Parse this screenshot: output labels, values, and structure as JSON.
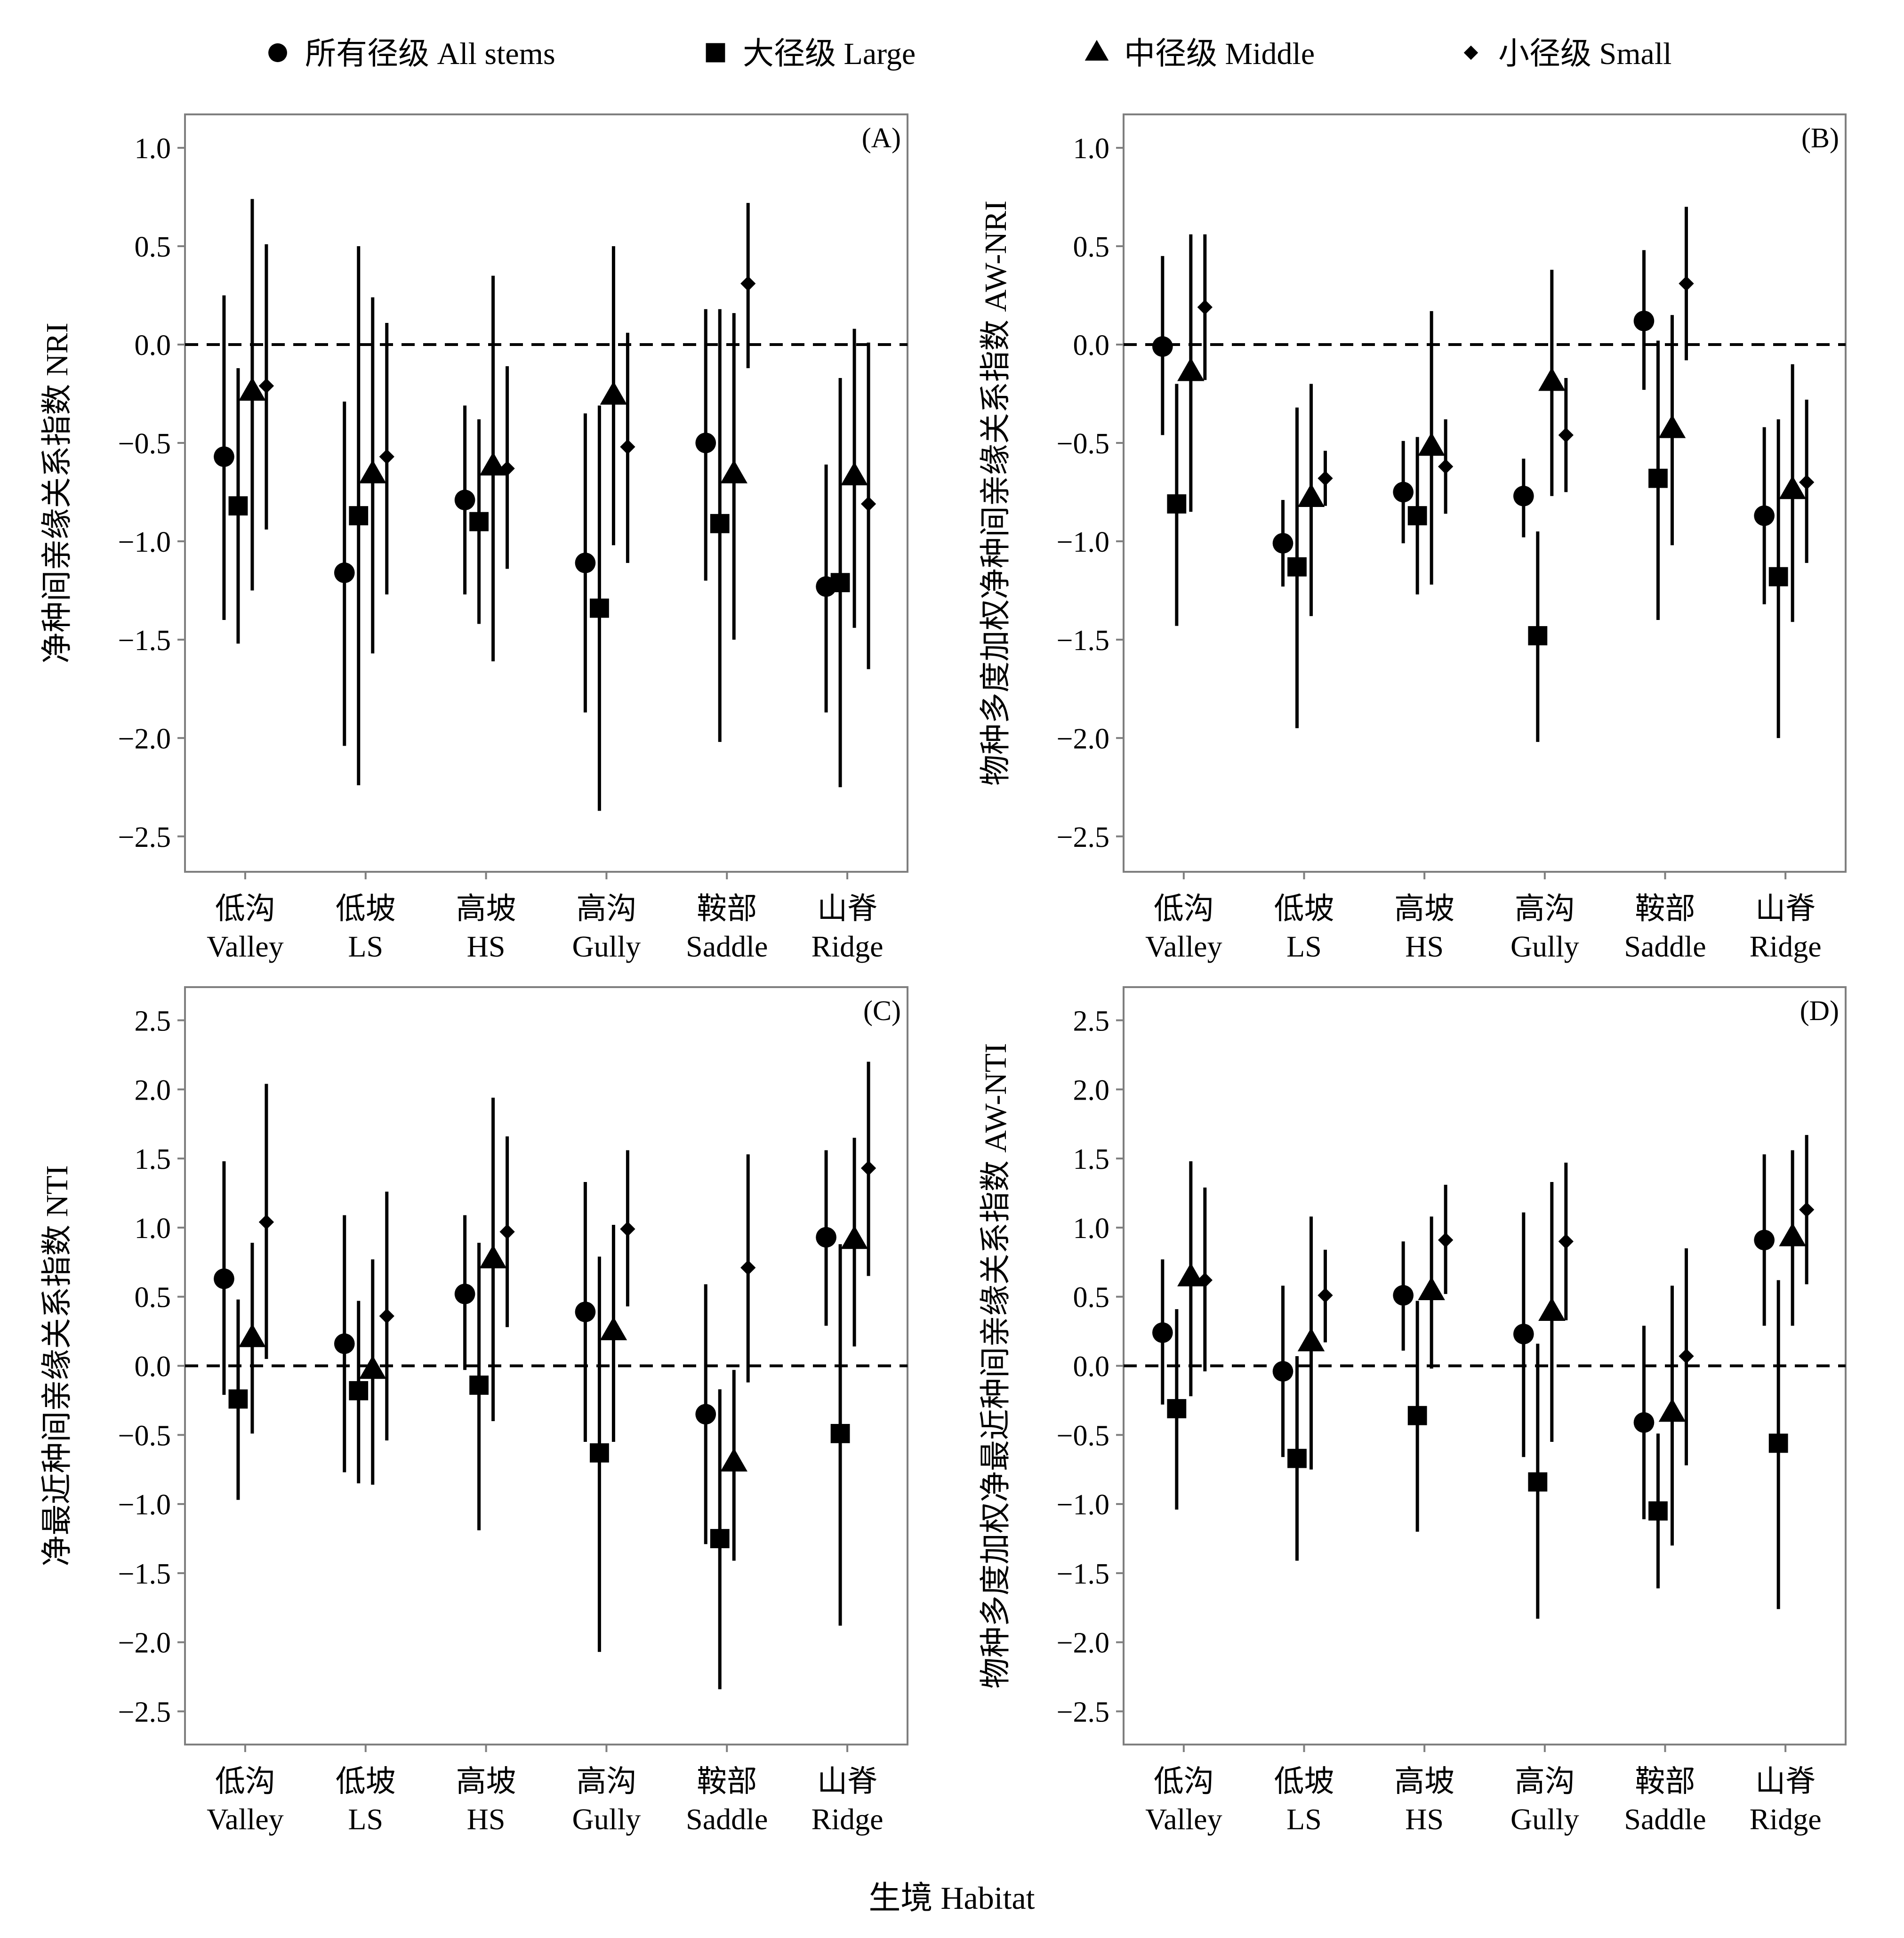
{
  "legend": {
    "items": [
      {
        "marker": "circle",
        "label": "所有径级 All stems"
      },
      {
        "marker": "square",
        "label": "大径级 Large"
      },
      {
        "marker": "triangle",
        "label": "中径级 Middle"
      },
      {
        "marker": "diamond",
        "label": "小径级 Small"
      }
    ]
  },
  "x_title": "生境 Habitat",
  "colors": {
    "marks": "#000000",
    "frame": "#7f7f7f",
    "reference_line": "#000000"
  },
  "chart_data": [
    {
      "type": "scatter",
      "panel": "(A)",
      "ylabel": "净种间亲缘关系指数 NRI",
      "ylim": [
        -2.68,
        1.17
      ],
      "yticks": [
        1.0,
        0.5,
        0.0,
        -0.5,
        -1.0,
        -1.5,
        -2.0,
        -2.5
      ],
      "ytick_labels": [
        "1.0",
        "0.5",
        "0.0",
        "−0.5",
        "−1.0",
        "−1.5",
        "−2.0",
        "−2.5"
      ],
      "categories": [
        "低沟\nValley",
        "低坡\nLS",
        "高坡\nHS",
        "高沟\nGully",
        "鞍部\nSaddle",
        "山脊\nRidge"
      ],
      "reference_line": 0,
      "grid": false,
      "series": [
        {
          "name": "所有径级 All stems",
          "marker": "circle",
          "values": [
            -0.57,
            -1.16,
            -0.79,
            -1.11,
            -0.5,
            -1.23
          ],
          "lower": [
            -1.4,
            -2.04,
            -1.27,
            -1.87,
            -1.2,
            -1.87
          ],
          "upper": [
            0.25,
            -0.29,
            -0.31,
            -0.35,
            0.18,
            -0.61
          ]
        },
        {
          "name": "大径级 Large",
          "marker": "square",
          "values": [
            -0.82,
            -0.87,
            -0.9,
            -1.34,
            -0.91,
            -1.21
          ],
          "lower": [
            -1.52,
            -2.24,
            -1.42,
            -2.37,
            -2.02,
            -2.25
          ],
          "upper": [
            -0.12,
            0.5,
            -0.38,
            -0.31,
            0.18,
            -0.17
          ]
        },
        {
          "name": "中径级 Middle",
          "marker": "triangle",
          "values": [
            -0.24,
            -0.66,
            -0.62,
            -0.26,
            -0.66,
            -0.67
          ],
          "lower": [
            -1.25,
            -1.57,
            -1.61,
            -1.02,
            -1.5,
            -1.44
          ],
          "upper": [
            0.74,
            0.24,
            0.35,
            0.5,
            0.16,
            0.08
          ]
        },
        {
          "name": "小径级 Small",
          "marker": "diamond",
          "values": [
            -0.21,
            -0.57,
            -0.63,
            -0.52,
            0.31,
            -0.81
          ],
          "lower": [
            -0.94,
            -1.27,
            -1.14,
            -1.11,
            -0.12,
            -1.65
          ],
          "upper": [
            0.51,
            0.11,
            -0.11,
            0.06,
            0.72,
            0.01
          ]
        }
      ]
    },
    {
      "type": "scatter",
      "panel": "(B)",
      "ylabel": "物种多度加权净种间亲缘关系指数 AW-NRI",
      "ylim": [
        -2.68,
        1.17
      ],
      "yticks": [
        1.0,
        0.5,
        0.0,
        -0.5,
        -1.0,
        -1.5,
        -2.0,
        -2.5
      ],
      "ytick_labels": [
        "1.0",
        "0.5",
        "0.0",
        "−0.5",
        "−1.0",
        "−1.5",
        "−2.0",
        "−2.5"
      ],
      "categories": [
        "低沟\nValley",
        "低坡\nLS",
        "高坡\nHS",
        "高沟\nGully",
        "鞍部\nSaddle",
        "山脊\nRidge"
      ],
      "reference_line": 0,
      "grid": false,
      "series": [
        {
          "name": "所有径级 All stems",
          "marker": "circle",
          "values": [
            -0.01,
            -1.01,
            -0.75,
            -0.77,
            0.12,
            -0.87
          ],
          "lower": [
            -0.46,
            -1.23,
            -1.01,
            -0.98,
            -0.23,
            -1.32
          ],
          "upper": [
            0.45,
            -0.79,
            -0.49,
            -0.58,
            0.48,
            -0.42
          ]
        },
        {
          "name": "大径级 Large",
          "marker": "square",
          "values": [
            -0.81,
            -1.13,
            -0.87,
            -1.48,
            -0.68,
            -1.18
          ],
          "lower": [
            -1.43,
            -1.95,
            -1.27,
            -2.02,
            -1.4,
            -2.0
          ],
          "upper": [
            -0.2,
            -0.32,
            -0.47,
            -0.95,
            0.02,
            -0.38
          ]
        },
        {
          "name": "中径级 Middle",
          "marker": "triangle",
          "values": [
            -0.14,
            -0.78,
            -0.52,
            -0.19,
            -0.43,
            -0.74
          ],
          "lower": [
            -0.85,
            -1.38,
            -1.22,
            -0.77,
            -1.02,
            -1.41
          ],
          "upper": [
            0.56,
            -0.2,
            0.17,
            0.38,
            0.15,
            -0.1
          ]
        },
        {
          "name": "小径级 Small",
          "marker": "diamond",
          "values": [
            0.19,
            -0.68,
            -0.62,
            -0.46,
            0.31,
            -0.7
          ],
          "lower": [
            -0.18,
            -0.82,
            -0.86,
            -0.75,
            -0.08,
            -1.11
          ],
          "upper": [
            0.56,
            -0.54,
            -0.38,
            -0.17,
            0.7,
            -0.28
          ]
        }
      ]
    },
    {
      "type": "scatter",
      "panel": "(C)",
      "ylabel": "净最近种间亲缘关系指数 NTI",
      "ylim": [
        -2.74,
        2.74
      ],
      "yticks": [
        2.5,
        2.0,
        1.5,
        1.0,
        0.5,
        0.0,
        -0.5,
        -1.0,
        -1.5,
        -2.0,
        -2.5
      ],
      "ytick_labels": [
        "2.5",
        "2.0",
        "1.5",
        "1.0",
        "0.5",
        "0.0",
        "−0.5",
        "−1.0",
        "−1.5",
        "−2.0",
        "−2.5"
      ],
      "categories": [
        "低沟\nValley",
        "低坡\nLS",
        "高坡\nHS",
        "高沟\nGully",
        "鞍部\nSaddle",
        "山脊\nRidge"
      ],
      "reference_line": 0,
      "grid": false,
      "series": [
        {
          "name": "所有径级 All stems",
          "marker": "circle",
          "values": [
            0.63,
            0.16,
            0.52,
            0.39,
            -0.35,
            0.93
          ],
          "lower": [
            -0.21,
            -0.77,
            -0.03,
            -0.55,
            -1.29,
            0.29
          ],
          "upper": [
            1.48,
            1.09,
            1.09,
            1.33,
            0.59,
            1.56
          ]
        },
        {
          "name": "大径级 Large",
          "marker": "square",
          "values": [
            -0.24,
            -0.18,
            -0.14,
            -0.63,
            -1.25,
            -0.49
          ],
          "lower": [
            -0.97,
            -0.85,
            -1.19,
            -2.07,
            -2.34,
            -1.88
          ],
          "upper": [
            0.48,
            0.47,
            0.89,
            0.79,
            -0.17,
            0.88
          ]
        },
        {
          "name": "中径级 Middle",
          "marker": "triangle",
          "values": [
            0.2,
            -0.03,
            0.77,
            0.25,
            -0.7,
            0.91
          ],
          "lower": [
            -0.49,
            -0.86,
            -0.4,
            -0.55,
            -1.41,
            0.14
          ],
          "upper": [
            0.89,
            0.77,
            1.94,
            1.02,
            -0.03,
            1.65
          ]
        },
        {
          "name": "小径级 Small",
          "marker": "diamond",
          "values": [
            1.04,
            0.36,
            0.97,
            0.99,
            0.71,
            1.43
          ],
          "lower": [
            0.05,
            -0.54,
            0.28,
            0.43,
            -0.12,
            0.65
          ],
          "upper": [
            2.04,
            1.26,
            1.66,
            1.56,
            1.53,
            2.2
          ]
        }
      ]
    },
    {
      "type": "scatter",
      "panel": "(D)",
      "ylabel": "物种多度加权净最近种间亲缘关系指数 AW-NTI",
      "ylim": [
        -2.74,
        2.74
      ],
      "yticks": [
        2.5,
        2.0,
        1.5,
        1.0,
        0.5,
        0.0,
        -0.5,
        -1.0,
        -1.5,
        -2.0,
        -2.5
      ],
      "ytick_labels": [
        "2.5",
        "2.0",
        "1.5",
        "1.0",
        "0.5",
        "0.0",
        "−0.5",
        "−1.0",
        "−1.5",
        "−2.0",
        "−2.5"
      ],
      "categories": [
        "低沟\nValley",
        "低坡\nLS",
        "高坡\nHS",
        "高沟\nGully",
        "鞍部\nSaddle",
        "山脊\nRidge"
      ],
      "reference_line": 0,
      "grid": false,
      "series": [
        {
          "name": "所有径级 All stems",
          "marker": "circle",
          "values": [
            0.24,
            -0.04,
            0.51,
            0.23,
            -0.41,
            0.91
          ],
          "lower": [
            -0.28,
            -0.66,
            0.11,
            -0.66,
            -1.11,
            0.29
          ],
          "upper": [
            0.77,
            0.58,
            0.9,
            1.11,
            0.29,
            1.53
          ]
        },
        {
          "name": "大径级 Large",
          "marker": "square",
          "values": [
            -0.31,
            -0.67,
            -0.36,
            -0.84,
            -1.05,
            -0.56
          ],
          "lower": [
            -1.04,
            -1.41,
            -1.2,
            -1.83,
            -1.61,
            -1.76
          ],
          "upper": [
            0.41,
            0.07,
            0.47,
            0.16,
            -0.49,
            0.62
          ]
        },
        {
          "name": "中径级 Middle",
          "marker": "triangle",
          "values": [
            0.64,
            0.17,
            0.54,
            0.39,
            -0.34,
            0.93
          ],
          "lower": [
            -0.22,
            -0.75,
            -0.02,
            -0.55,
            -1.3,
            0.29
          ],
          "upper": [
            1.48,
            1.08,
            1.08,
            1.33,
            0.58,
            1.56
          ]
        },
        {
          "name": "小径级 Small",
          "marker": "diamond",
          "values": [
            0.62,
            0.51,
            0.91,
            0.9,
            0.07,
            1.13
          ],
          "lower": [
            -0.04,
            0.17,
            0.52,
            0.33,
            -0.72,
            0.59
          ],
          "upper": [
            1.29,
            0.84,
            1.31,
            1.47,
            0.85,
            1.67
          ]
        }
      ]
    }
  ]
}
